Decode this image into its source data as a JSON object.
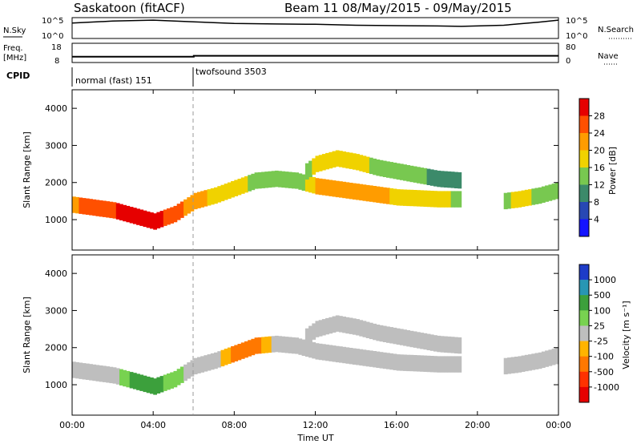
{
  "header": {
    "station": "Saskatoon (fitACF)",
    "beam_date": "Beam 11 08/May/2015 - 09/May/2015"
  },
  "noise_panel": {
    "left_label": "N.Sky",
    "right_label": "N.Search",
    "tick_top": "10^5",
    "tick_bottom": "10^0"
  },
  "freq_panel": {
    "left_label_line1": "Freq.",
    "left_label_line2": "[MHz]",
    "left_tick_top": "18",
    "left_tick_bottom": "8",
    "right_tick_top": "80",
    "right_tick_bottom": "0",
    "right_label": "Nave"
  },
  "cpid_panel": {
    "label": "CPID",
    "modes": [
      "normal (fast) 151",
      "twofsound 3503"
    ]
  },
  "power_panel": {
    "ylabel": "Slant Range [km]",
    "yticks": [
      "1000",
      "2000",
      "3000",
      "4000"
    ],
    "colorbar_label": "Power [dB]",
    "colorbar_ticks": [
      "4",
      "8",
      "12",
      "16",
      "20",
      "24",
      "28"
    ],
    "colors": [
      "#1414ff",
      "#2848b4",
      "#3c8a6a",
      "#78c850",
      "#f0d200",
      "#ff9c00",
      "#ff5000",
      "#e60000"
    ]
  },
  "velocity_panel": {
    "ylabel": "Slant Range [km]",
    "yticks": [
      "1000",
      "2000",
      "3000",
      "4000"
    ],
    "colorbar_label": "Velocity [m s⁻¹]",
    "colorbar_ticks": [
      "1000",
      "500",
      "100",
      "25",
      "-25",
      "-100",
      "-500",
      "-1000"
    ],
    "colors": [
      "#1e3cc8",
      "#2896b4",
      "#3ca03c",
      "#78d250",
      "#bebebe",
      "#ffb400",
      "#ff7800",
      "#ff3200",
      "#e60000"
    ]
  },
  "xaxis": {
    "label": "Time UT",
    "ticks": [
      "00:00",
      "04:00",
      "08:00",
      "12:00",
      "16:00",
      "20:00",
      "00:00"
    ]
  },
  "chart_data": [
    {
      "type": "line",
      "panel": "noise",
      "y_scale": "log",
      "ylim": [
        1,
        100000
      ],
      "xlim_hours": [
        0,
        24
      ],
      "series": [
        {
          "name": "N.Sky",
          "x_hours": [
            0,
            2,
            4,
            6,
            8,
            10,
            12,
            14,
            16,
            18,
            19.2,
            21.3,
            22,
            23,
            24
          ],
          "values": [
            5000,
            15000,
            25000,
            10000,
            4000,
            3000,
            2500,
            1500,
            1200,
            1000,
            800,
            1500,
            3000,
            8000,
            25000
          ]
        }
      ]
    },
    {
      "type": "line",
      "panel": "frequency",
      "ylim": [
        8,
        18
      ],
      "xlim_hours": [
        0,
        24
      ],
      "series": [
        {
          "name": "Freq.",
          "x_hours": [
            0,
            6,
            6,
            24
          ],
          "values": [
            11,
            11,
            11.5,
            11.5
          ]
        }
      ]
    },
    {
      "type": "heatmap",
      "panel": "power",
      "ylabel": "Slant Range [km]",
      "ylim": [
        180,
        4500
      ],
      "xlim_hours": [
        0,
        24
      ],
      "value_label": "Power [dB]",
      "value_range": [
        0,
        30
      ],
      "bands": [
        {
          "t": [
            0,
            2,
            3,
            4,
            5,
            6,
            7,
            8,
            9,
            10,
            11,
            12,
            14,
            16,
            18,
            19.2
          ],
          "range_km": [
            1400,
            1250,
            1100,
            950,
            1150,
            1500,
            1650,
            1850,
            2050,
            2100,
            2050,
            1900,
            1750,
            1600,
            1550,
            1550
          ],
          "power_db": [
            22,
            26,
            28,
            28,
            24,
            20,
            18,
            16,
            14,
            12,
            12,
            20,
            22,
            18,
            16,
            14
          ]
        },
        {
          "t": [
            11.5,
            12,
            13,
            14,
            15,
            16,
            17,
            18,
            19.2
          ],
          "range_km": [
            2300,
            2500,
            2650,
            2550,
            2400,
            2300,
            2200,
            2100,
            2050
          ],
          "power_db": [
            14,
            16,
            18,
            16,
            14,
            12,
            12,
            10,
            10
          ]
        },
        {
          "t": [
            21.3,
            22,
            23,
            24
          ],
          "range_km": [
            1500,
            1550,
            1650,
            1800
          ],
          "power_db": [
            14,
            16,
            14,
            12
          ]
        }
      ]
    },
    {
      "type": "heatmap",
      "panel": "velocity",
      "ylabel": "Slant Range [km]",
      "ylim": [
        180,
        4500
      ],
      "xlim_hours": [
        0,
        24
      ],
      "value_label": "Velocity [m s-1]",
      "value_range": [
        -1000,
        1000
      ],
      "bands": [
        {
          "t": [
            0,
            2,
            3,
            4,
            5,
            6,
            7,
            8,
            9,
            10,
            11,
            12,
            14,
            16,
            18,
            19.2
          ],
          "range_km": [
            1400,
            1250,
            1100,
            950,
            1150,
            1500,
            1650,
            1850,
            2050,
            2100,
            2050,
            1900,
            1750,
            1600,
            1550,
            1550
          ],
          "velocity": [
            0,
            0,
            150,
            150,
            50,
            0,
            0,
            -150,
            -150,
            0,
            0,
            0,
            0,
            0,
            0,
            0
          ]
        },
        {
          "t": [
            11.5,
            12,
            13,
            14,
            15,
            16,
            17,
            18,
            19.2
          ],
          "range_km": [
            2300,
            2500,
            2650,
            2550,
            2400,
            2300,
            2200,
            2100,
            2050
          ],
          "velocity": [
            0,
            0,
            0,
            0,
            0,
            0,
            0,
            0,
            0
          ]
        },
        {
          "t": [
            21.3,
            22,
            23,
            24
          ],
          "range_km": [
            1500,
            1550,
            1650,
            1800
          ],
          "velocity": [
            0,
            0,
            0,
            0
          ]
        }
      ]
    }
  ]
}
